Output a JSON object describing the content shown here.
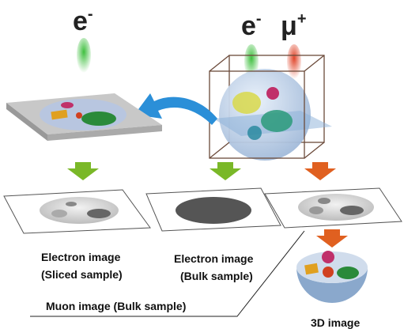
{
  "beams": [
    {
      "base": "e",
      "sup": "-"
    },
    {
      "base": "e",
      "sup": "-"
    },
    {
      "base": "μ",
      "sup": "+"
    }
  ],
  "labels": {
    "sliced": [
      "Electron image",
      "(Sliced sample)"
    ],
    "bulk": [
      "Electron image",
      "(Bulk sample)"
    ],
    "muon": "Muon image (Bulk sample)",
    "three_d": "3D image"
  }
}
